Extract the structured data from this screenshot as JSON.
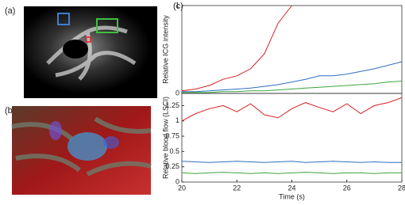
{
  "panels": {
    "a": "(a)",
    "b": "(b)",
    "c": "(c)"
  },
  "chart_data": [
    {
      "type": "line",
      "ylabel": "Relative ICG intensity",
      "x": [
        20,
        20.5,
        21,
        21.5,
        22,
        22.5,
        23,
        23.5,
        24,
        24.5,
        25,
        25.5,
        26,
        26.5,
        27,
        27.5,
        28
      ],
      "xlim": [
        20,
        28
      ],
      "ylim": [
        0,
        1
      ],
      "yticks": [
        0,
        1
      ],
      "series": [
        {
          "color": "#d62020",
          "values": [
            0.03,
            0.05,
            0.09,
            0.16,
            0.2,
            0.28,
            0.45,
            0.8,
            1,
            null,
            null,
            null,
            null,
            null,
            null,
            null,
            null
          ]
        },
        {
          "color": "#2f6fc0",
          "values": [
            0.02,
            0.02,
            0.03,
            0.04,
            0.05,
            0.06,
            0.08,
            0.1,
            0.13,
            0.16,
            0.2,
            0.2,
            0.22,
            0.25,
            0.28,
            0.32,
            0.36
          ]
        },
        {
          "color": "#3aa53a",
          "values": [
            0.01,
            0.01,
            0.01,
            0.02,
            0.02,
            0.03,
            0.03,
            0.04,
            0.05,
            0.06,
            0.07,
            0.08,
            0.09,
            0.1,
            0.11,
            0.13,
            0.14
          ]
        }
      ]
    },
    {
      "type": "line",
      "ylabel": "Relative blood flow (LSCI)",
      "xlabel": "Time (s)",
      "x": [
        20,
        20.5,
        21,
        21.5,
        22,
        22.5,
        23,
        23.5,
        24,
        24.5,
        25,
        25.5,
        26,
        26.5,
        27,
        27.5,
        28
      ],
      "xlim": [
        20,
        28
      ],
      "xticks": [
        20,
        22,
        24,
        26,
        28
      ],
      "ylim": [
        0,
        1.45
      ],
      "yticks": [
        0,
        0.25,
        0.5,
        0.75,
        1,
        1.25
      ],
      "series": [
        {
          "color": "#d62020",
          "values": [
            1.0,
            1.12,
            1.2,
            1.25,
            1.15,
            1.28,
            1.1,
            1.05,
            1.2,
            1.3,
            1.22,
            1.15,
            1.28,
            1.12,
            1.25,
            1.3,
            1.38
          ]
        },
        {
          "color": "#2f6fc0",
          "values": [
            0.34,
            0.33,
            0.32,
            0.33,
            0.34,
            0.33,
            0.32,
            0.33,
            0.34,
            0.32,
            0.33,
            0.34,
            0.33,
            0.32,
            0.33,
            0.32,
            0.32
          ]
        },
        {
          "color": "#3aa53a",
          "values": [
            0.15,
            0.14,
            0.15,
            0.16,
            0.15,
            0.14,
            0.15,
            0.14,
            0.15,
            0.16,
            0.15,
            0.14,
            0.15,
            0.15,
            0.14,
            0.15,
            0.15
          ]
        }
      ]
    }
  ]
}
